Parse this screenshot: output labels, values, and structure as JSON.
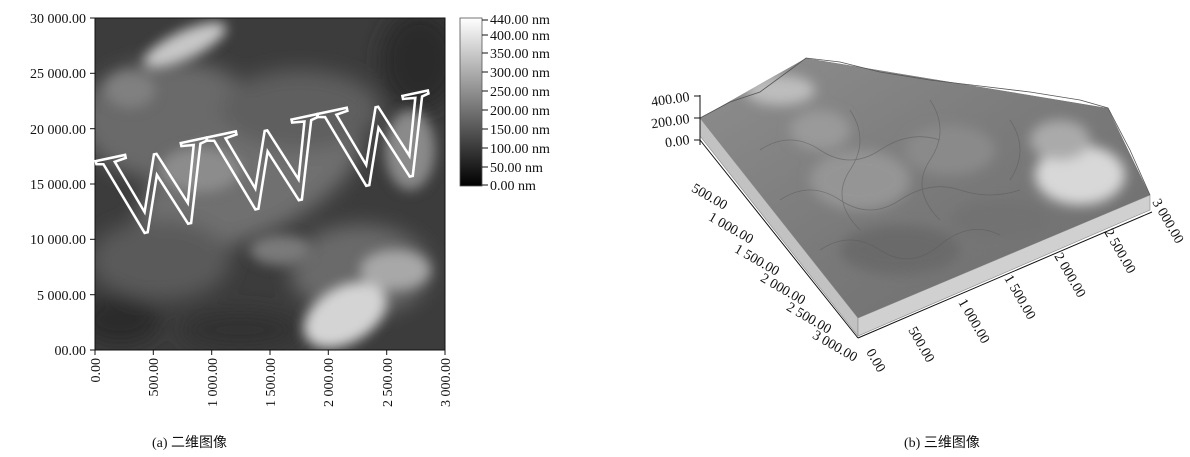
{
  "panel_a": {
    "caption": "(a) 二维图像",
    "y_ticks": [
      "30 000.00",
      "25 000.00",
      "20 000.00",
      "15 000.00",
      "10 000.00",
      "5 000.00",
      "00.00"
    ],
    "x_ticks": [
      "0.00",
      "500.00",
      "1 000.00",
      "1 500.00",
      "2 000.00",
      "2 500.00",
      "3 000.00"
    ],
    "colorbar_ticks": [
      "440.00 nm",
      "400.00 nm",
      "350.00 nm",
      "300.00 nm",
      "250.00 nm",
      "200.00 nm",
      "150.00 nm",
      "100.00 nm",
      "50.00 nm",
      "0.00 nm"
    ]
  },
  "panel_b": {
    "caption": "(b) 三维图像",
    "z_ticks": [
      "400.00",
      "200.00",
      "0.00"
    ],
    "left_axis_ticks": [
      "500.00",
      "1 000.00",
      "1 500.00",
      "2 000.00",
      "2 500.00",
      "3 000.00"
    ],
    "front_axis_ticks": [
      "0.00",
      "500.00",
      "1 000.00",
      "1 500.00",
      "2 000.00",
      "2 500.00",
      "3 000.00"
    ]
  },
  "watermark": "WWW",
  "colors": {
    "surface_light": "#d8d8d8",
    "surface_dark": "#2a2a2a",
    "base_gray": "#c4c4c4"
  }
}
